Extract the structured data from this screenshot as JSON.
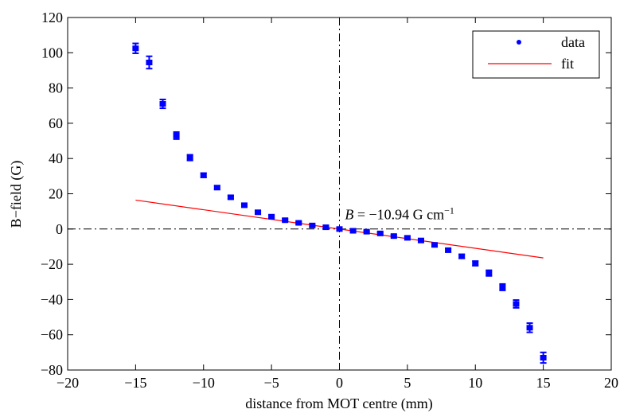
{
  "chart_data": {
    "type": "scatter",
    "xlabel": "distance from MOT centre (mm)",
    "ylabel": "B−field (G)",
    "xlim": [
      -20,
      20
    ],
    "ylim": [
      -80,
      120
    ],
    "xticks": [
      -20,
      -15,
      -10,
      -5,
      0,
      5,
      10,
      15,
      20
    ],
    "yticks": [
      -80,
      -60,
      -40,
      -20,
      0,
      20,
      40,
      60,
      80,
      100,
      120
    ],
    "xtick_labels": [
      "−20",
      "−15",
      "−10",
      "−5",
      "0",
      "5",
      "10",
      "15",
      "20"
    ],
    "ytick_labels": [
      "−80",
      "−60",
      "−40",
      "−20",
      "0",
      "20",
      "40",
      "60",
      "80",
      "100",
      "120"
    ],
    "grid": false,
    "legend_position": "top-right",
    "colors": {
      "data": "#0000ff",
      "fit": "#ff0000",
      "axes": "#000000"
    },
    "reference_lines": {
      "x": 0,
      "y": 0,
      "style": "dash-dot"
    },
    "annotation": {
      "symbol": "B",
      "text": " = −10.94 G cm",
      "superscript": "−1",
      "x": 0.4,
      "y": 5.5
    },
    "series": [
      {
        "name": "data",
        "kind": "points-with-errorbars",
        "x": [
          -15,
          -14,
          -13,
          -12,
          -11,
          -10,
          -9,
          -8,
          -7,
          -6,
          -5,
          -4,
          -3,
          -2,
          -1,
          0,
          1,
          2,
          3,
          4,
          5,
          6,
          7,
          8,
          9,
          10,
          11,
          12,
          13,
          14,
          15
        ],
        "y": [
          102.5,
          94.5,
          71,
          53,
          40.5,
          30.5,
          23.5,
          18,
          13.5,
          9.5,
          7,
          5,
          3.5,
          2,
          1,
          0,
          -1,
          -1.5,
          -2.5,
          -4,
          -5,
          -6.5,
          -9,
          -12,
          -15.5,
          -19.5,
          -25,
          -33,
          -42.5,
          -56,
          -73
        ],
        "err": [
          2.8,
          3.5,
          2.5,
          2.0,
          1.6,
          1.2,
          1.0,
          0.9,
          0.8,
          0.8,
          0.7,
          0.7,
          0.6,
          0.6,
          0.5,
          0.5,
          0.5,
          0.5,
          0.6,
          0.7,
          0.7,
          0.8,
          0.9,
          1.0,
          1.1,
          1.3,
          1.6,
          1.8,
          2.2,
          2.6,
          3.0
        ]
      },
      {
        "name": "fit",
        "kind": "line",
        "x": [
          -15,
          15
        ],
        "y": [
          16.41,
          -16.41
        ]
      }
    ]
  }
}
